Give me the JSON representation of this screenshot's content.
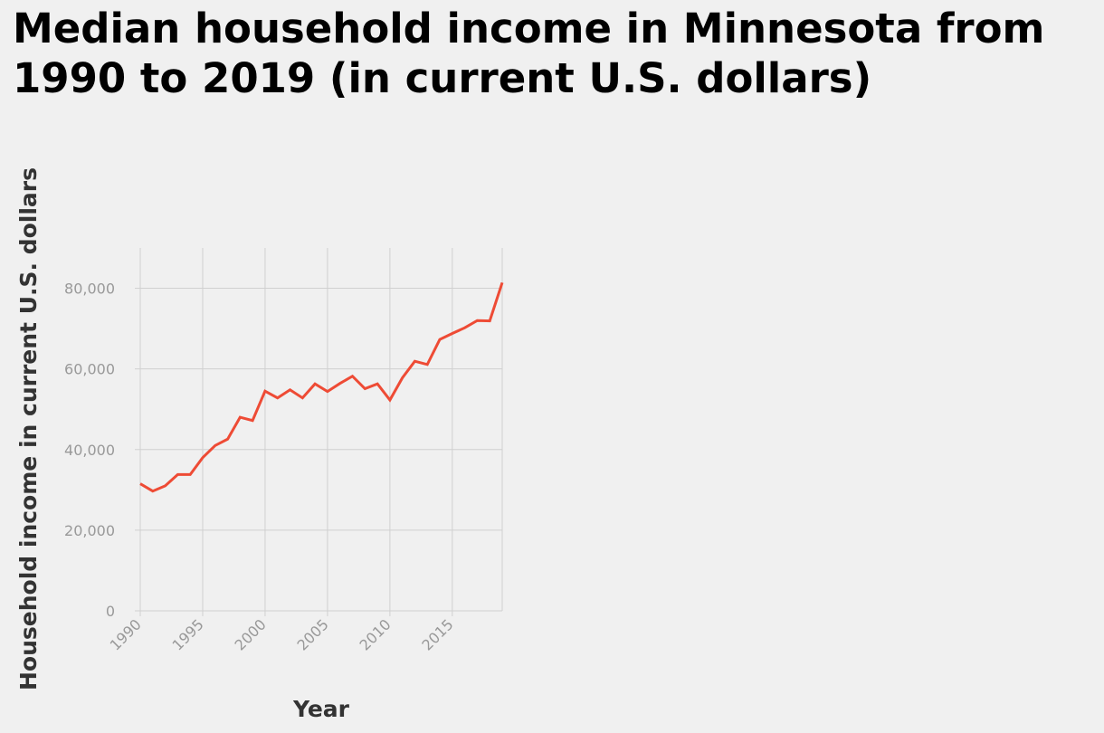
{
  "chart_data": {
    "type": "line",
    "title": "Median household income in Minnesota from 1990 to 2019 (in current U.S. dollars)",
    "xlabel": "Year",
    "ylabel": "Household income in current U.S. dollars",
    "xlim": [
      1990,
      2019
    ],
    "ylim": [
      0,
      90000
    ],
    "x_ticks": [
      1990,
      1995,
      2000,
      2005,
      2010,
      2015
    ],
    "x_tick_labels": [
      "1990",
      "1995",
      "2000",
      "2005",
      "2010",
      "2015"
    ],
    "y_ticks": [
      0,
      20000,
      40000,
      60000,
      80000
    ],
    "y_tick_labels": [
      "0",
      "20,000",
      "40,000",
      "60,000",
      "80,000"
    ],
    "grid": true,
    "line_color": "#ee4b35",
    "series": [
      {
        "x": [
          1990,
          1991,
          1992,
          1993,
          1994,
          1995,
          1996,
          1997,
          1998,
          1999,
          2000,
          2001,
          2002,
          2003,
          2004,
          2005,
          2006,
          2007,
          2008,
          2009,
          2010,
          2011,
          2012,
          2013,
          2014,
          2015,
          2016,
          2017,
          2018,
          2019
        ],
        "values": [
          31500,
          29700,
          31000,
          33800,
          33800,
          38000,
          41000,
          42600,
          48000,
          47200,
          54500,
          52800,
          54800,
          52800,
          56300,
          54400,
          56400,
          58200,
          55100,
          56300,
          52300,
          57800,
          61900,
          61100,
          67300,
          68800,
          70200,
          72000,
          71900,
          81400
        ]
      }
    ]
  }
}
